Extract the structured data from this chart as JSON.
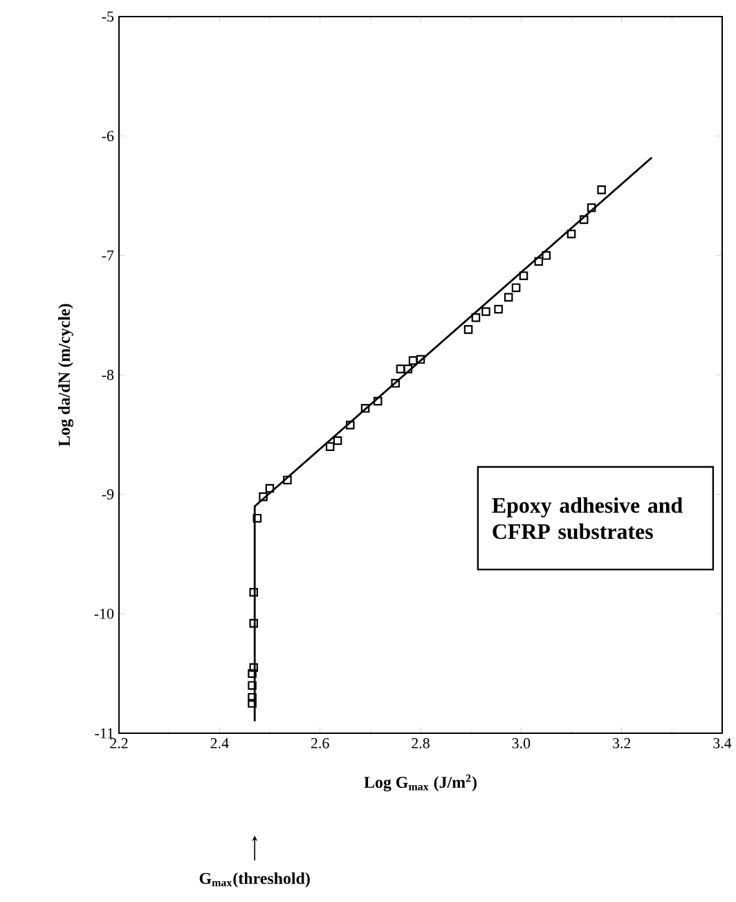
{
  "chart_data": {
    "type": "scatter",
    "xlabel": "Log G$_{max}$  (J/m$^{2}$)",
    "ylabel": "Log da/dN  (m/cycle)",
    "xlim": [
      2.2,
      3.4
    ],
    "ylim": [
      -11,
      -5
    ],
    "xticks": [
      {
        "value": 2.2,
        "label": "2.2"
      },
      {
        "value": 2.4,
        "label": "2.4"
      },
      {
        "value": 2.6,
        "label": "2.6"
      },
      {
        "value": 2.8,
        "label": "2.8"
      },
      {
        "value": 3.0,
        "label": "3.0"
      },
      {
        "value": 3.2,
        "label": "3.2"
      },
      {
        "value": 3.4,
        "label": "3.4"
      }
    ],
    "yticks": [
      -11,
      -10,
      -9,
      -8,
      -7,
      -6,
      -5
    ],
    "grid": false,
    "series": [
      {
        "marker": "square",
        "color": "#000000",
        "x": [
          2.465,
          2.465,
          2.465,
          2.465,
          2.468,
          2.468,
          2.468,
          2.475,
          2.487,
          2.5,
          2.535,
          2.62,
          2.635,
          2.66,
          2.69,
          2.715,
          2.75,
          2.76,
          2.775,
          2.785,
          2.8,
          2.895,
          2.91,
          2.93,
          2.955,
          2.975,
          2.99,
          3.005,
          3.035,
          3.05,
          3.1,
          3.125,
          3.14,
          3.16
        ],
        "values": [
          -10.75,
          -10.7,
          -10.6,
          -10.5,
          -10.45,
          -10.08,
          -9.82,
          -9.2,
          -9.02,
          -8.95,
          -8.88,
          -8.6,
          -8.55,
          -8.42,
          -8.28,
          -8.22,
          -8.07,
          -7.95,
          -7.95,
          -7.88,
          -7.87,
          -7.62,
          -7.52,
          -7.47,
          -7.45,
          -7.35,
          -7.27,
          -7.17,
          -7.05,
          -7.0,
          -6.82,
          -6.7,
          -6.6,
          -6.45
        ]
      },
      {
        "type": "line",
        "marker": "none",
        "line_style": "solid",
        "color": "#000000",
        "x": [
          2.47,
          2.47,
          3.26
        ],
        "values": [
          -10.9,
          -9.1,
          -6.18
        ]
      }
    ],
    "annotations": [
      "Epoxy adhesive and CFRP substrates",
      "G$_{max}$(threshold)"
    ]
  }
}
